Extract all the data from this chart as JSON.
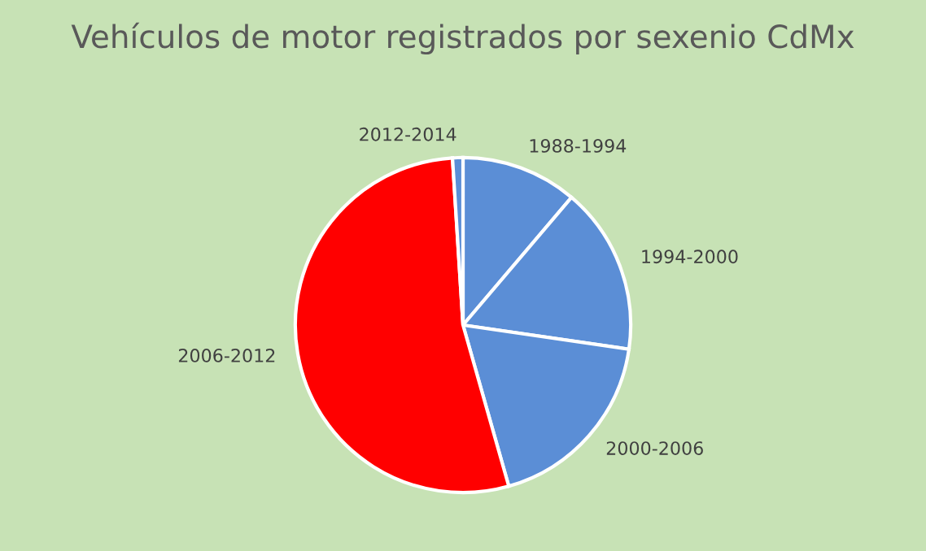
{
  "chart_data": {
    "type": "pie",
    "title": "Vehículos de motor registrados por sexenio CdMx",
    "categories": [
      "1988-1994",
      "1994-2000",
      "2000-2006",
      "2006-2012",
      "2012-2014"
    ],
    "values": [
      11.2,
      16.1,
      18.3,
      53.4,
      1.0
    ],
    "colors": [
      "#5b8ed6",
      "#5b8ed6",
      "#5b8ed6",
      "#ff0000",
      "#5b8ed6"
    ],
    "legend": false
  }
}
